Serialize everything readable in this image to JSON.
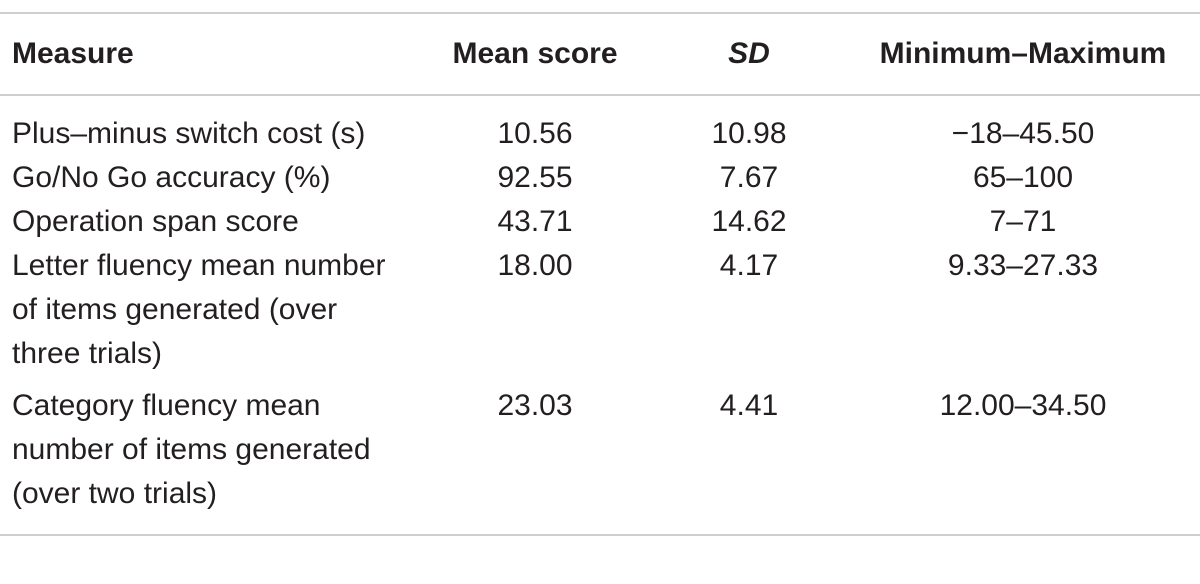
{
  "table": {
    "headers": {
      "measure": "Measure",
      "mean": "Mean score",
      "sd": "SD",
      "range": "Minimum–Maximum"
    },
    "rows": [
      {
        "measure": "Plus–minus switch cost (s)",
        "mean": "10.56",
        "sd": "10.98",
        "range": "−18–45.50"
      },
      {
        "measure": "Go/No Go accuracy (%)",
        "mean": "92.55",
        "sd": "7.67",
        "range": "65–100"
      },
      {
        "measure": "Operation span score",
        "mean": "43.71",
        "sd": "14.62",
        "range": "7–71"
      },
      {
        "measure": "Letter fluency mean number of items generated (over three trials)",
        "mean": "18.00",
        "sd": "4.17",
        "range": "9.33–27.33"
      },
      {
        "measure": "Category fluency mean number of items generated (over two trials)",
        "mean": "23.03",
        "sd": "4.41",
        "range": "12.00–34.50"
      }
    ]
  }
}
